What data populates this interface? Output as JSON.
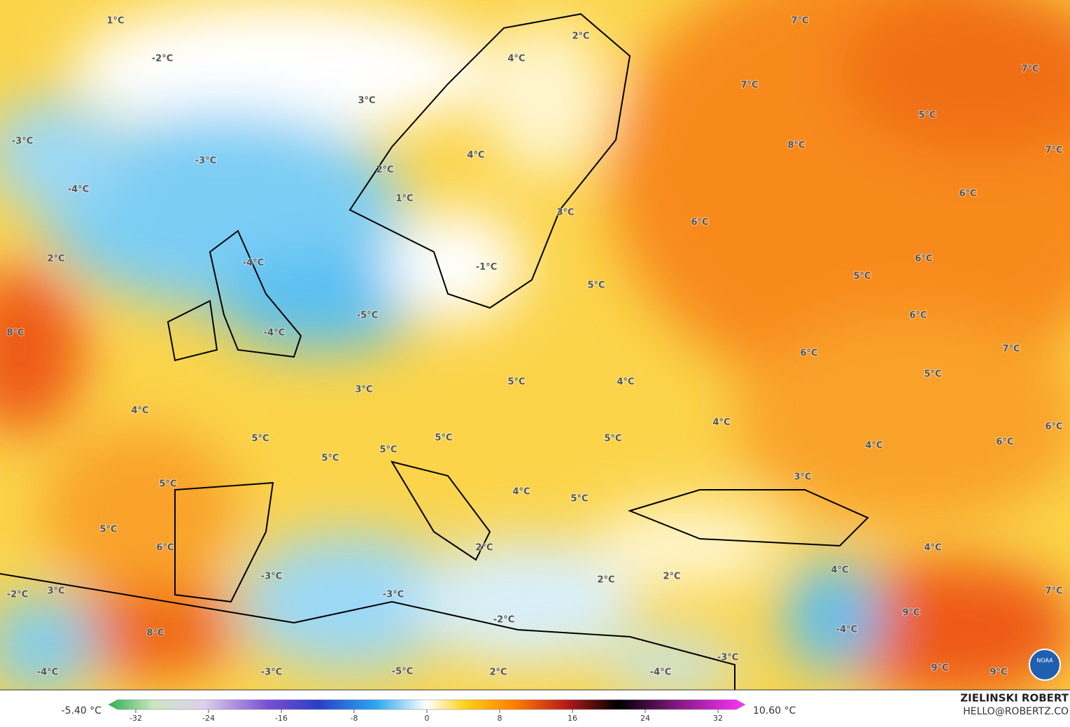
{
  "map": {
    "labels": [
      "1°C",
      "-2°C",
      "3°C",
      "-3°C",
      "-3°C",
      "-4°C",
      "2°C",
      "1°C",
      "2°C",
      "-4°C",
      "-1°C",
      "-5°C",
      "-4°C",
      "8°C",
      "3°C",
      "4°C",
      "5°C",
      "5°C",
      "5°C",
      "5°C",
      "5°C",
      "5°C",
      "6°C",
      "-3°C",
      "3°C",
      "-2°C",
      "8°C",
      "-4°C",
      "-3°C",
      "-3°C",
      "-5°C",
      "-2°C",
      "2°C",
      "2°C",
      "4°C",
      "5°C",
      "5°C",
      "5°C",
      "5°C",
      "4°C",
      "4°C",
      "2°C",
      "2°C",
      "-4°C",
      "-3°C",
      "3°C",
      "4°C",
      "4°C",
      "4°C",
      "-4°C",
      "9°C",
      "9°C",
      "9°C",
      "7°C",
      "6°C",
      "6°C",
      "5°C",
      "7°C",
      "6°C",
      "6°C",
      "5°C",
      "6°C",
      "6°C",
      "6°C",
      "7°C",
      "5°C",
      "7°C",
      "7°C",
      "7°C",
      "8°C",
      "3°C",
      "4°C",
      "4°C",
      "2°C"
    ],
    "logo": "NOAA"
  },
  "colorbar": {
    "min_label": "-5.40 °C",
    "max_label": "10.60 °C",
    "range": [
      -35,
      35
    ],
    "ticks": [
      -32,
      -24,
      -16,
      -8,
      0,
      8,
      16,
      24,
      32
    ]
  },
  "credit": {
    "name": "ZIELINSKI ROBERT",
    "email": "HELLO@ROBERTZ.CO"
  }
}
